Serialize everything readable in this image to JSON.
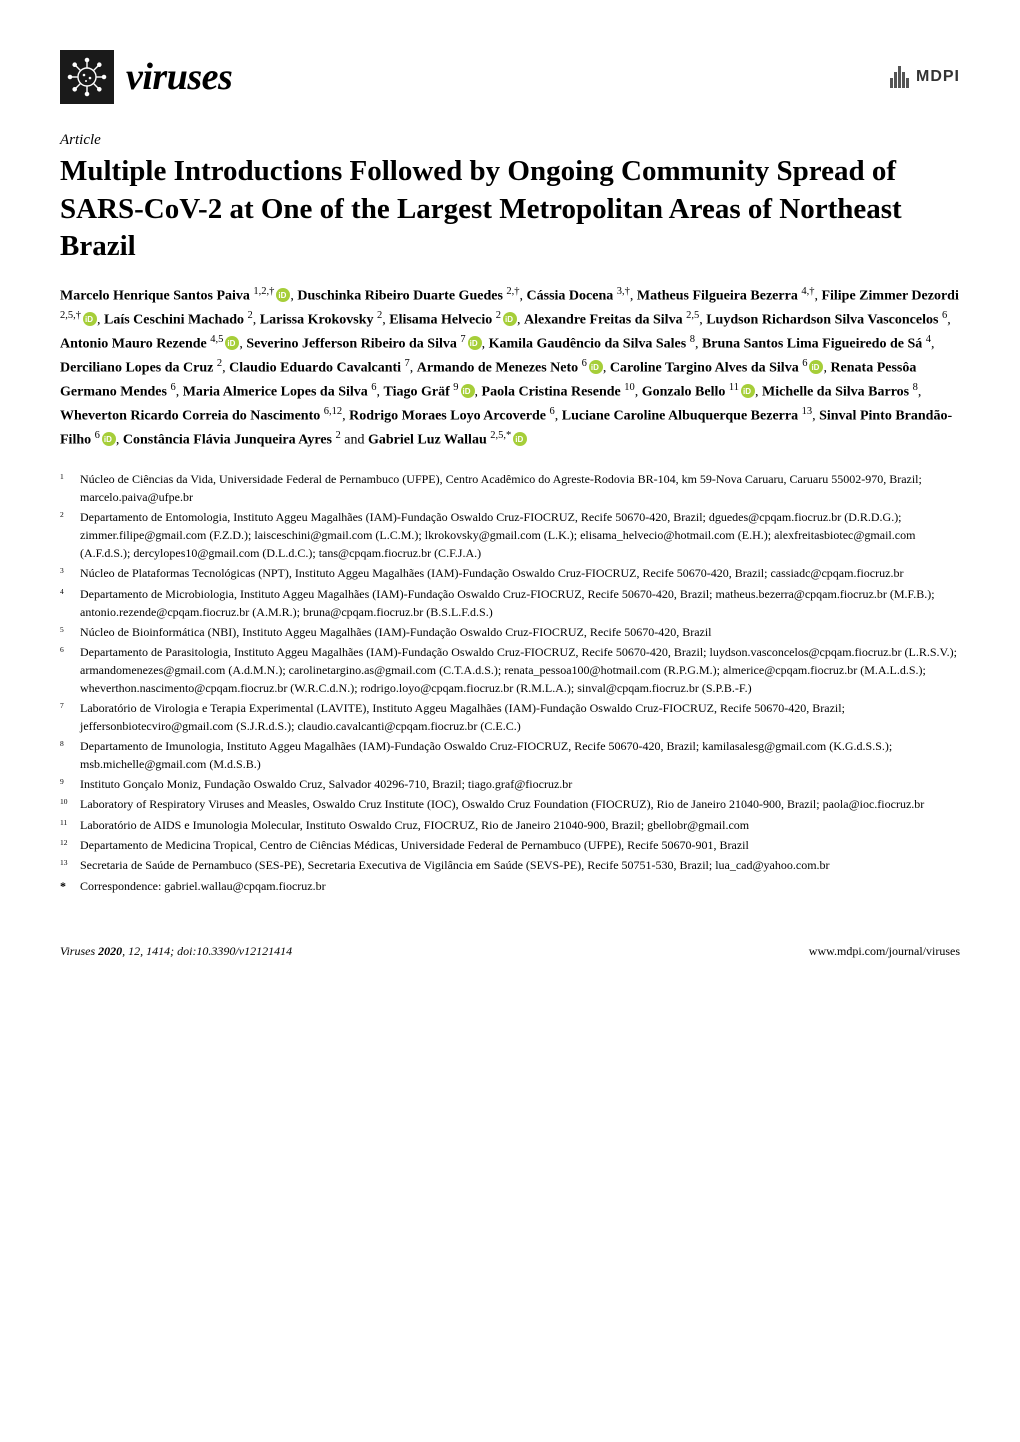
{
  "journal": {
    "name": "viruses",
    "publisher": "MDPI",
    "logo_bg": "#1a1a1a",
    "logo_fg": "#ffffff"
  },
  "article": {
    "type": "Article",
    "title": "Multiple Introductions Followed by Ongoing Community Spread of SARS-CoV-2 at One of the Largest Metropolitan Areas of Northeast Brazil"
  },
  "authors": [
    {
      "name": "Marcelo Henrique Santos Paiva",
      "affs": "1,2,†",
      "orcid": true,
      "sep": ", "
    },
    {
      "name": "Duschinka Ribeiro Duarte Guedes",
      "affs": "2,†",
      "orcid": false,
      "sep": ", "
    },
    {
      "name": "Cássia Docena",
      "affs": "3,†",
      "orcid": false,
      "sep": ", "
    },
    {
      "name": "Matheus Filgueira Bezerra",
      "affs": "4,†",
      "orcid": false,
      "sep": ", "
    },
    {
      "name": "Filipe Zimmer Dezordi",
      "affs": "2,5,†",
      "orcid": true,
      "sep": ", "
    },
    {
      "name": "Laís Ceschini Machado",
      "affs": "2",
      "orcid": false,
      "sep": ", "
    },
    {
      "name": "Larissa Krokovsky",
      "affs": "2",
      "orcid": false,
      "sep": ", "
    },
    {
      "name": "Elisama Helvecio",
      "affs": "2",
      "orcid": true,
      "sep": ", "
    },
    {
      "name": "Alexandre Freitas da Silva",
      "affs": "2,5",
      "orcid": false,
      "sep": ", "
    },
    {
      "name": "Luydson Richardson Silva Vasconcelos",
      "affs": "6",
      "orcid": false,
      "sep": ", "
    },
    {
      "name": "Antonio Mauro Rezende",
      "affs": "4,5",
      "orcid": true,
      "sep": ", "
    },
    {
      "name": "Severino Jefferson Ribeiro da Silva",
      "affs": "7",
      "orcid": true,
      "sep": ", "
    },
    {
      "name": "Kamila Gaudêncio da Silva Sales",
      "affs": "8",
      "orcid": false,
      "sep": ", "
    },
    {
      "name": "Bruna Santos Lima Figueiredo de Sá",
      "affs": "4",
      "orcid": false,
      "sep": ", "
    },
    {
      "name": "Derciliano Lopes da Cruz",
      "affs": "2",
      "orcid": false,
      "sep": ", "
    },
    {
      "name": "Claudio Eduardo Cavalcanti",
      "affs": "7",
      "orcid": false,
      "sep": ", "
    },
    {
      "name": "Armando de Menezes Neto",
      "affs": "6",
      "orcid": true,
      "sep": ", "
    },
    {
      "name": "Caroline Targino Alves da Silva",
      "affs": "6",
      "orcid": true,
      "sep": ", "
    },
    {
      "name": "Renata Pessôa Germano Mendes",
      "affs": "6",
      "orcid": false,
      "sep": ", "
    },
    {
      "name": "Maria Almerice Lopes da Silva",
      "affs": "6",
      "orcid": false,
      "sep": ", "
    },
    {
      "name": "Tiago Gräf",
      "affs": "9",
      "orcid": true,
      "sep": ", "
    },
    {
      "name": "Paola Cristina Resende",
      "affs": "10",
      "orcid": false,
      "sep": ", "
    },
    {
      "name": "Gonzalo Bello",
      "affs": "11",
      "orcid": true,
      "sep": ", "
    },
    {
      "name": "Michelle da Silva Barros",
      "affs": "8",
      "orcid": false,
      "sep": ", "
    },
    {
      "name": "Wheverton Ricardo Correia do Nascimento",
      "affs": "6,12",
      "orcid": false,
      "sep": ", "
    },
    {
      "name": "Rodrigo Moraes Loyo Arcoverde",
      "affs": "6",
      "orcid": false,
      "sep": ", "
    },
    {
      "name": "Luciane Caroline Albuquerque Bezerra",
      "affs": "13",
      "orcid": false,
      "sep": ", "
    },
    {
      "name": "Sinval Pinto Brandão-Filho",
      "affs": "6",
      "orcid": true,
      "sep": ", "
    },
    {
      "name": "Constância Flávia Junqueira Ayres",
      "affs": "2",
      "orcid": false,
      "sep": " and "
    },
    {
      "name": "Gabriel Luz Wallau",
      "affs": "2,5,*",
      "orcid": true,
      "sep": ""
    }
  ],
  "affiliations": [
    {
      "num": "1",
      "text": "Núcleo de Ciências da Vida, Universidade Federal de Pernambuco (UFPE), Centro Acadêmico do Agreste-Rodovia BR-104, km 59-Nova Caruaru, Caruaru 55002-970, Brazil; marcelo.paiva@ufpe.br"
    },
    {
      "num": "2",
      "text": "Departamento de Entomologia, Instituto Aggeu Magalhães (IAM)-Fundação Oswaldo Cruz-FIOCRUZ, Recife 50670-420, Brazil; dguedes@cpqam.fiocruz.br (D.R.D.G.); zimmer.filipe@gmail.com (F.Z.D.); laisceschini@gmail.com (L.C.M.); lkrokovsky@gmail.com (L.K.); elisama_helvecio@hotmail.com (E.H.); alexfreitasbiotec@gmail.com (A.F.d.S.); dercylopes10@gmail.com (D.L.d.C.); tans@cpqam.fiocruz.br (C.F.J.A.)"
    },
    {
      "num": "3",
      "text": "Núcleo de Plataformas Tecnológicas (NPT), Instituto Aggeu Magalhães (IAM)-Fundação Oswaldo Cruz-FIOCRUZ, Recife 50670-420, Brazil; cassiadc@cpqam.fiocruz.br"
    },
    {
      "num": "4",
      "text": "Departamento de Microbiologia, Instituto Aggeu Magalhães (IAM)-Fundação Oswaldo Cruz-FIOCRUZ, Recife 50670-420, Brazil; matheus.bezerra@cpqam.fiocruz.br (M.F.B.); antonio.rezende@cpqam.fiocruz.br (A.M.R.); bruna@cpqam.fiocruz.br (B.S.L.F.d.S.)"
    },
    {
      "num": "5",
      "text": "Núcleo de Bioinformática (NBI), Instituto Aggeu Magalhães (IAM)-Fundação Oswaldo Cruz-FIOCRUZ, Recife 50670-420, Brazil"
    },
    {
      "num": "6",
      "text": "Departamento de Parasitologia, Instituto Aggeu Magalhães (IAM)-Fundação Oswaldo Cruz-FIOCRUZ, Recife 50670-420, Brazil; luydson.vasconcelos@cpqam.fiocruz.br (L.R.S.V.); armandomenezes@gmail.com (A.d.M.N.); carolinetargino.as@gmail.com (C.T.A.d.S.); renata_pessoa100@hotmail.com (R.P.G.M.); almerice@cpqam.fiocruz.br (M.A.L.d.S.); wheverthon.nascimento@cpqam.fiocruz.br (W.R.C.d.N.); rodrigo.loyo@cpqam.fiocruz.br (R.M.L.A.); sinval@cpqam.fiocruz.br (S.P.B.-F.)"
    },
    {
      "num": "7",
      "text": "Laboratório de Virologia e Terapia Experimental (LAVITE), Instituto Aggeu Magalhães (IAM)-Fundação Oswaldo Cruz-FIOCRUZ, Recife 50670-420, Brazil; jeffersonbiotecviro@gmail.com (S.J.R.d.S.); claudio.cavalcanti@cpqam.fiocruz.br (C.E.C.)"
    },
    {
      "num": "8",
      "text": "Departamento de Imunologia, Instituto Aggeu Magalhães (IAM)-Fundação Oswaldo Cruz-FIOCRUZ, Recife 50670-420, Brazil; kamilasalesg@gmail.com (K.G.d.S.S.); msb.michelle@gmail.com (M.d.S.B.)"
    },
    {
      "num": "9",
      "text": "Instituto Gonçalo Moniz, Fundação Oswaldo Cruz, Salvador 40296-710, Brazil; tiago.graf@fiocruz.br"
    },
    {
      "num": "10",
      "text": "Laboratory of Respiratory Viruses and Measles, Oswaldo Cruz Institute (IOC), Oswaldo Cruz Foundation (FIOCRUZ), Rio de Janeiro 21040-900, Brazil; paola@ioc.fiocruz.br"
    },
    {
      "num": "11",
      "text": "Laboratório de AIDS e Imunologia Molecular, Instituto Oswaldo Cruz, FIOCRUZ, Rio de Janeiro 21040-900, Brazil; gbellobr@gmail.com"
    },
    {
      "num": "12",
      "text": "Departamento de Medicina Tropical, Centro de Ciências Médicas, Universidade Federal de Pernambuco (UFPE), Recife 50670-901, Brazil"
    },
    {
      "num": "13",
      "text": "Secretaria de Saúde de Pernambuco (SES-PE), Secretaria Executiva de Vigilância em Saúde (SEVS-PE), Recife 50751-530, Brazil; lua_cad@yahoo.com.br"
    }
  ],
  "correspondence": {
    "mark": "*",
    "text": "Correspondence: gabriel.wallau@cpqam.fiocruz.br"
  },
  "footer": {
    "left": "Viruses 2020, 12, 1414; doi:10.3390/v12121414",
    "right": "www.mdpi.com/journal/viruses"
  },
  "colors": {
    "orcid_green": "#a6ce39",
    "text": "#000000",
    "bg": "#ffffff"
  },
  "typography": {
    "title_fontsize": 29,
    "author_fontsize": 14,
    "aff_fontsize": 12,
    "footer_fontsize": 12,
    "journal_fontsize": 38
  }
}
